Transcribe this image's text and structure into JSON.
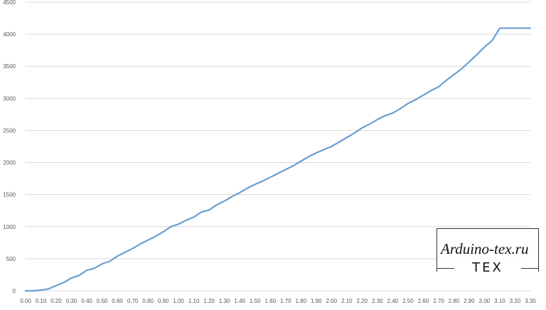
{
  "chart_data": {
    "type": "line",
    "title": "",
    "xlabel": "",
    "ylabel": "",
    "xlim": [
      0.0,
      3.3
    ],
    "ylim": [
      0,
      4500
    ],
    "grid": "horizontal",
    "legend": "none",
    "line_color": "#6b9ed0",
    "grid_color": "#d9d9d9",
    "y_ticks": [
      0,
      500,
      1000,
      1500,
      2000,
      2500,
      3000,
      3500,
      4000,
      4500
    ],
    "x_ticks": [
      "0.00",
      "0.10",
      "0.20",
      "0.30",
      "0.40",
      "0.50",
      "0.60",
      "0.70",
      "0.80",
      "0.90",
      "1.00",
      "1.10",
      "1.20",
      "1.30",
      "1.40",
      "1.50",
      "1.60",
      "1.70",
      "1.80",
      "1.90",
      "2.00",
      "2.10",
      "2.20",
      "2.30",
      "2.40",
      "2.50",
      "2.60",
      "2.70",
      "2.80",
      "2.90",
      "3.00",
      "3.10",
      "3.20",
      "3.30"
    ],
    "series": [
      {
        "x": [
          0.0,
          0.05,
          0.1,
          0.15,
          0.2,
          0.25,
          0.3,
          0.35,
          0.4,
          0.45,
          0.5,
          0.55,
          0.6,
          0.65,
          0.7,
          0.75,
          0.8,
          0.85,
          0.9,
          0.95,
          1.0,
          1.05,
          1.1,
          1.15,
          1.2,
          1.25,
          1.3,
          1.35,
          1.4,
          1.45,
          1.5,
          1.55,
          1.6,
          1.65,
          1.7,
          1.75,
          1.8,
          1.85,
          1.9,
          1.95,
          2.0,
          2.05,
          2.1,
          2.15,
          2.2,
          2.25,
          2.3,
          2.35,
          2.4,
          2.45,
          2.5,
          2.55,
          2.6,
          2.65,
          2.7,
          2.75,
          2.8,
          2.85,
          2.9,
          2.95,
          3.0,
          3.05,
          3.1,
          3.15,
          3.2,
          3.25,
          3.3
        ],
        "y": [
          0,
          0,
          10,
          30,
          80,
          130,
          200,
          240,
          320,
          350,
          420,
          460,
          540,
          600,
          660,
          730,
          790,
          850,
          920,
          1000,
          1040,
          1100,
          1150,
          1230,
          1260,
          1340,
          1400,
          1470,
          1530,
          1600,
          1660,
          1710,
          1770,
          1830,
          1890,
          1950,
          2020,
          2090,
          2150,
          2200,
          2250,
          2320,
          2390,
          2460,
          2540,
          2600,
          2670,
          2730,
          2770,
          2840,
          2920,
          2980,
          3050,
          3120,
          3180,
          3280,
          3370,
          3460,
          3570,
          3680,
          3800,
          3900,
          4095,
          4095,
          4095,
          4095,
          4095
        ]
      }
    ]
  },
  "watermark": {
    "site": "Arduino-tex.ru",
    "logo": "TEX"
  }
}
